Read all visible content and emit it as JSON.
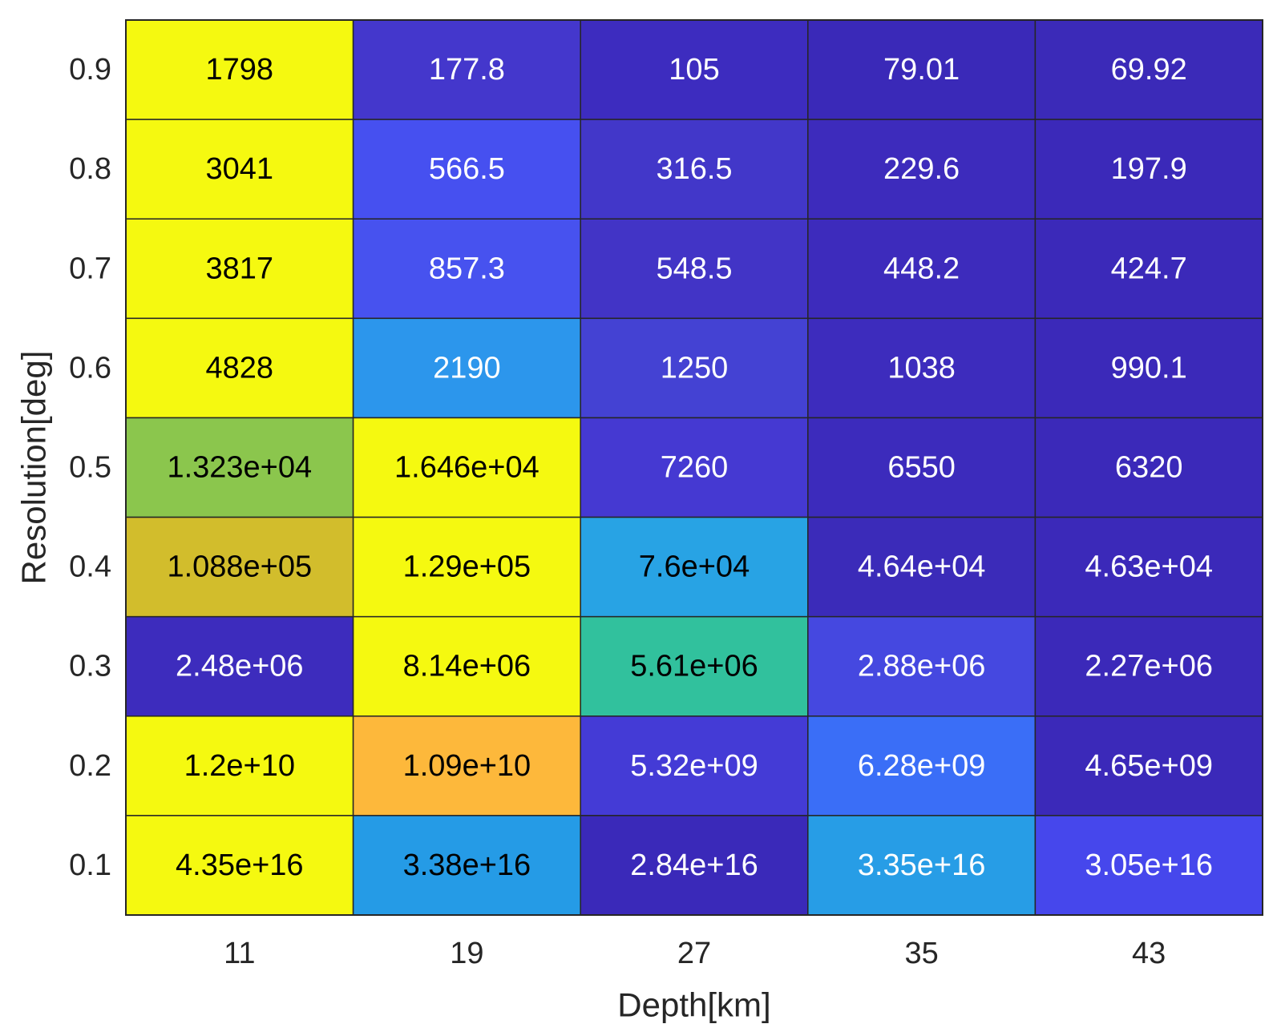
{
  "chart_data": {
    "type": "heatmap",
    "title": "",
    "xlabel": "Depth[km]",
    "ylabel": "Resolution[deg]",
    "x_categories": [
      "11",
      "19",
      "27",
      "35",
      "43"
    ],
    "y_categories": [
      "0.9",
      "0.8",
      "0.7",
      "0.6",
      "0.5",
      "0.4",
      "0.3",
      "0.2",
      "0.1"
    ],
    "grid": true,
    "colorbar": false,
    "colormap": "parula (per-row scaling)",
    "rows": [
      {
        "y": "0.9",
        "values": [
          1798,
          177.8,
          105,
          79.01,
          69.92
        ],
        "labels": [
          "1798",
          "177.8",
          "105",
          "79.01",
          "69.92"
        ],
        "colors": [
          "#f5f910",
          "#4437cc",
          "#3d2cbf",
          "#3a29b8",
          "#3b2ab8"
        ],
        "text_colors": [
          "#000000",
          "#ffffff",
          "#ffffff",
          "#ffffff",
          "#ffffff"
        ]
      },
      {
        "y": "0.8",
        "values": [
          3041,
          566.5,
          316.5,
          229.6,
          197.9
        ],
        "labels": [
          "3041",
          "566.5",
          "316.5",
          "229.6",
          "197.9"
        ],
        "colors": [
          "#f5f910",
          "#4650f0",
          "#4237c9",
          "#3d2bbc",
          "#3b29b9"
        ],
        "text_colors": [
          "#000000",
          "#ffffff",
          "#ffffff",
          "#ffffff",
          "#ffffff"
        ]
      },
      {
        "y": "0.7",
        "values": [
          3817,
          857.3,
          548.5,
          448.2,
          424.7
        ],
        "labels": [
          "3817",
          "857.3",
          "548.5",
          "448.2",
          "424.7"
        ],
        "colors": [
          "#f5f910",
          "#4752ef",
          "#4234c6",
          "#3d2bbc",
          "#3b29b9"
        ],
        "text_colors": [
          "#000000",
          "#ffffff",
          "#ffffff",
          "#ffffff",
          "#ffffff"
        ]
      },
      {
        "y": "0.6",
        "values": [
          4828,
          2190,
          1250,
          1038,
          990.1
        ],
        "labels": [
          "4828",
          "2190",
          "1250",
          "1038",
          "990.1"
        ],
        "colors": [
          "#f5f910",
          "#2c96ec",
          "#4442d3",
          "#3d2cbd",
          "#3b29b9"
        ],
        "text_colors": [
          "#000000",
          "#ffffff",
          "#ffffff",
          "#ffffff",
          "#ffffff"
        ]
      },
      {
        "y": "0.5",
        "values": [
          13230,
          16460,
          7260,
          6550,
          6320
        ],
        "labels": [
          "1.323e+04",
          "1.646e+04",
          "7260",
          "6550",
          "6320"
        ],
        "colors": [
          "#8bc64d",
          "#f5f910",
          "#4539d2",
          "#3c2bbc",
          "#3b29b9"
        ],
        "text_colors": [
          "#000000",
          "#000000",
          "#ffffff",
          "#ffffff",
          "#ffffff"
        ]
      },
      {
        "y": "0.4",
        "values": [
          108800,
          129000,
          76000,
          46400,
          46300
        ],
        "labels": [
          "1.088e+05",
          "1.29e+05",
          "7.6e+04",
          "4.64e+04",
          "4.63e+04"
        ],
        "colors": [
          "#d2bd2c",
          "#f5f910",
          "#28a3e4",
          "#3b2bb9",
          "#3b29b9"
        ],
        "text_colors": [
          "#000000",
          "#000000",
          "#000000",
          "#ffffff",
          "#ffffff"
        ]
      },
      {
        "y": "0.3",
        "values": [
          2480000,
          8140000,
          5610000,
          2880000,
          2270000
        ],
        "labels": [
          "2.48e+06",
          "8.14e+06",
          "5.61e+06",
          "2.88e+06",
          "2.27e+06"
        ],
        "colors": [
          "#3d2cbd",
          "#f5f910",
          "#31c19d",
          "#4548e0",
          "#3b29b9"
        ],
        "text_colors": [
          "#ffffff",
          "#000000",
          "#000000",
          "#ffffff",
          "#ffffff"
        ]
      },
      {
        "y": "0.2",
        "values": [
          12000000000,
          10900000000,
          5320000000,
          6280000000,
          4650000000
        ],
        "labels": [
          "1.2e+10",
          "1.09e+10",
          "5.32e+09",
          "6.28e+09",
          "4.65e+09"
        ],
        "colors": [
          "#f5f910",
          "#fdb83b",
          "#443bd6",
          "#3a6ef7",
          "#3b29b9"
        ],
        "text_colors": [
          "#000000",
          "#000000",
          "#ffffff",
          "#ffffff",
          "#ffffff"
        ]
      },
      {
        "y": "0.1",
        "values": [
          4.35e+16,
          3.38e+16,
          2.84e+16,
          3.35e+16,
          3.05e+16
        ],
        "labels": [
          "4.35e+16",
          "3.38e+16",
          "2.84e+16",
          "3.35e+16",
          "3.05e+16"
        ],
        "colors": [
          "#f5f910",
          "#259be6",
          "#3a29b9",
          "#279de6",
          "#4647ec"
        ],
        "text_colors": [
          "#000000",
          "#000000",
          "#ffffff",
          "#ffffff",
          "#ffffff"
        ]
      }
    ]
  }
}
